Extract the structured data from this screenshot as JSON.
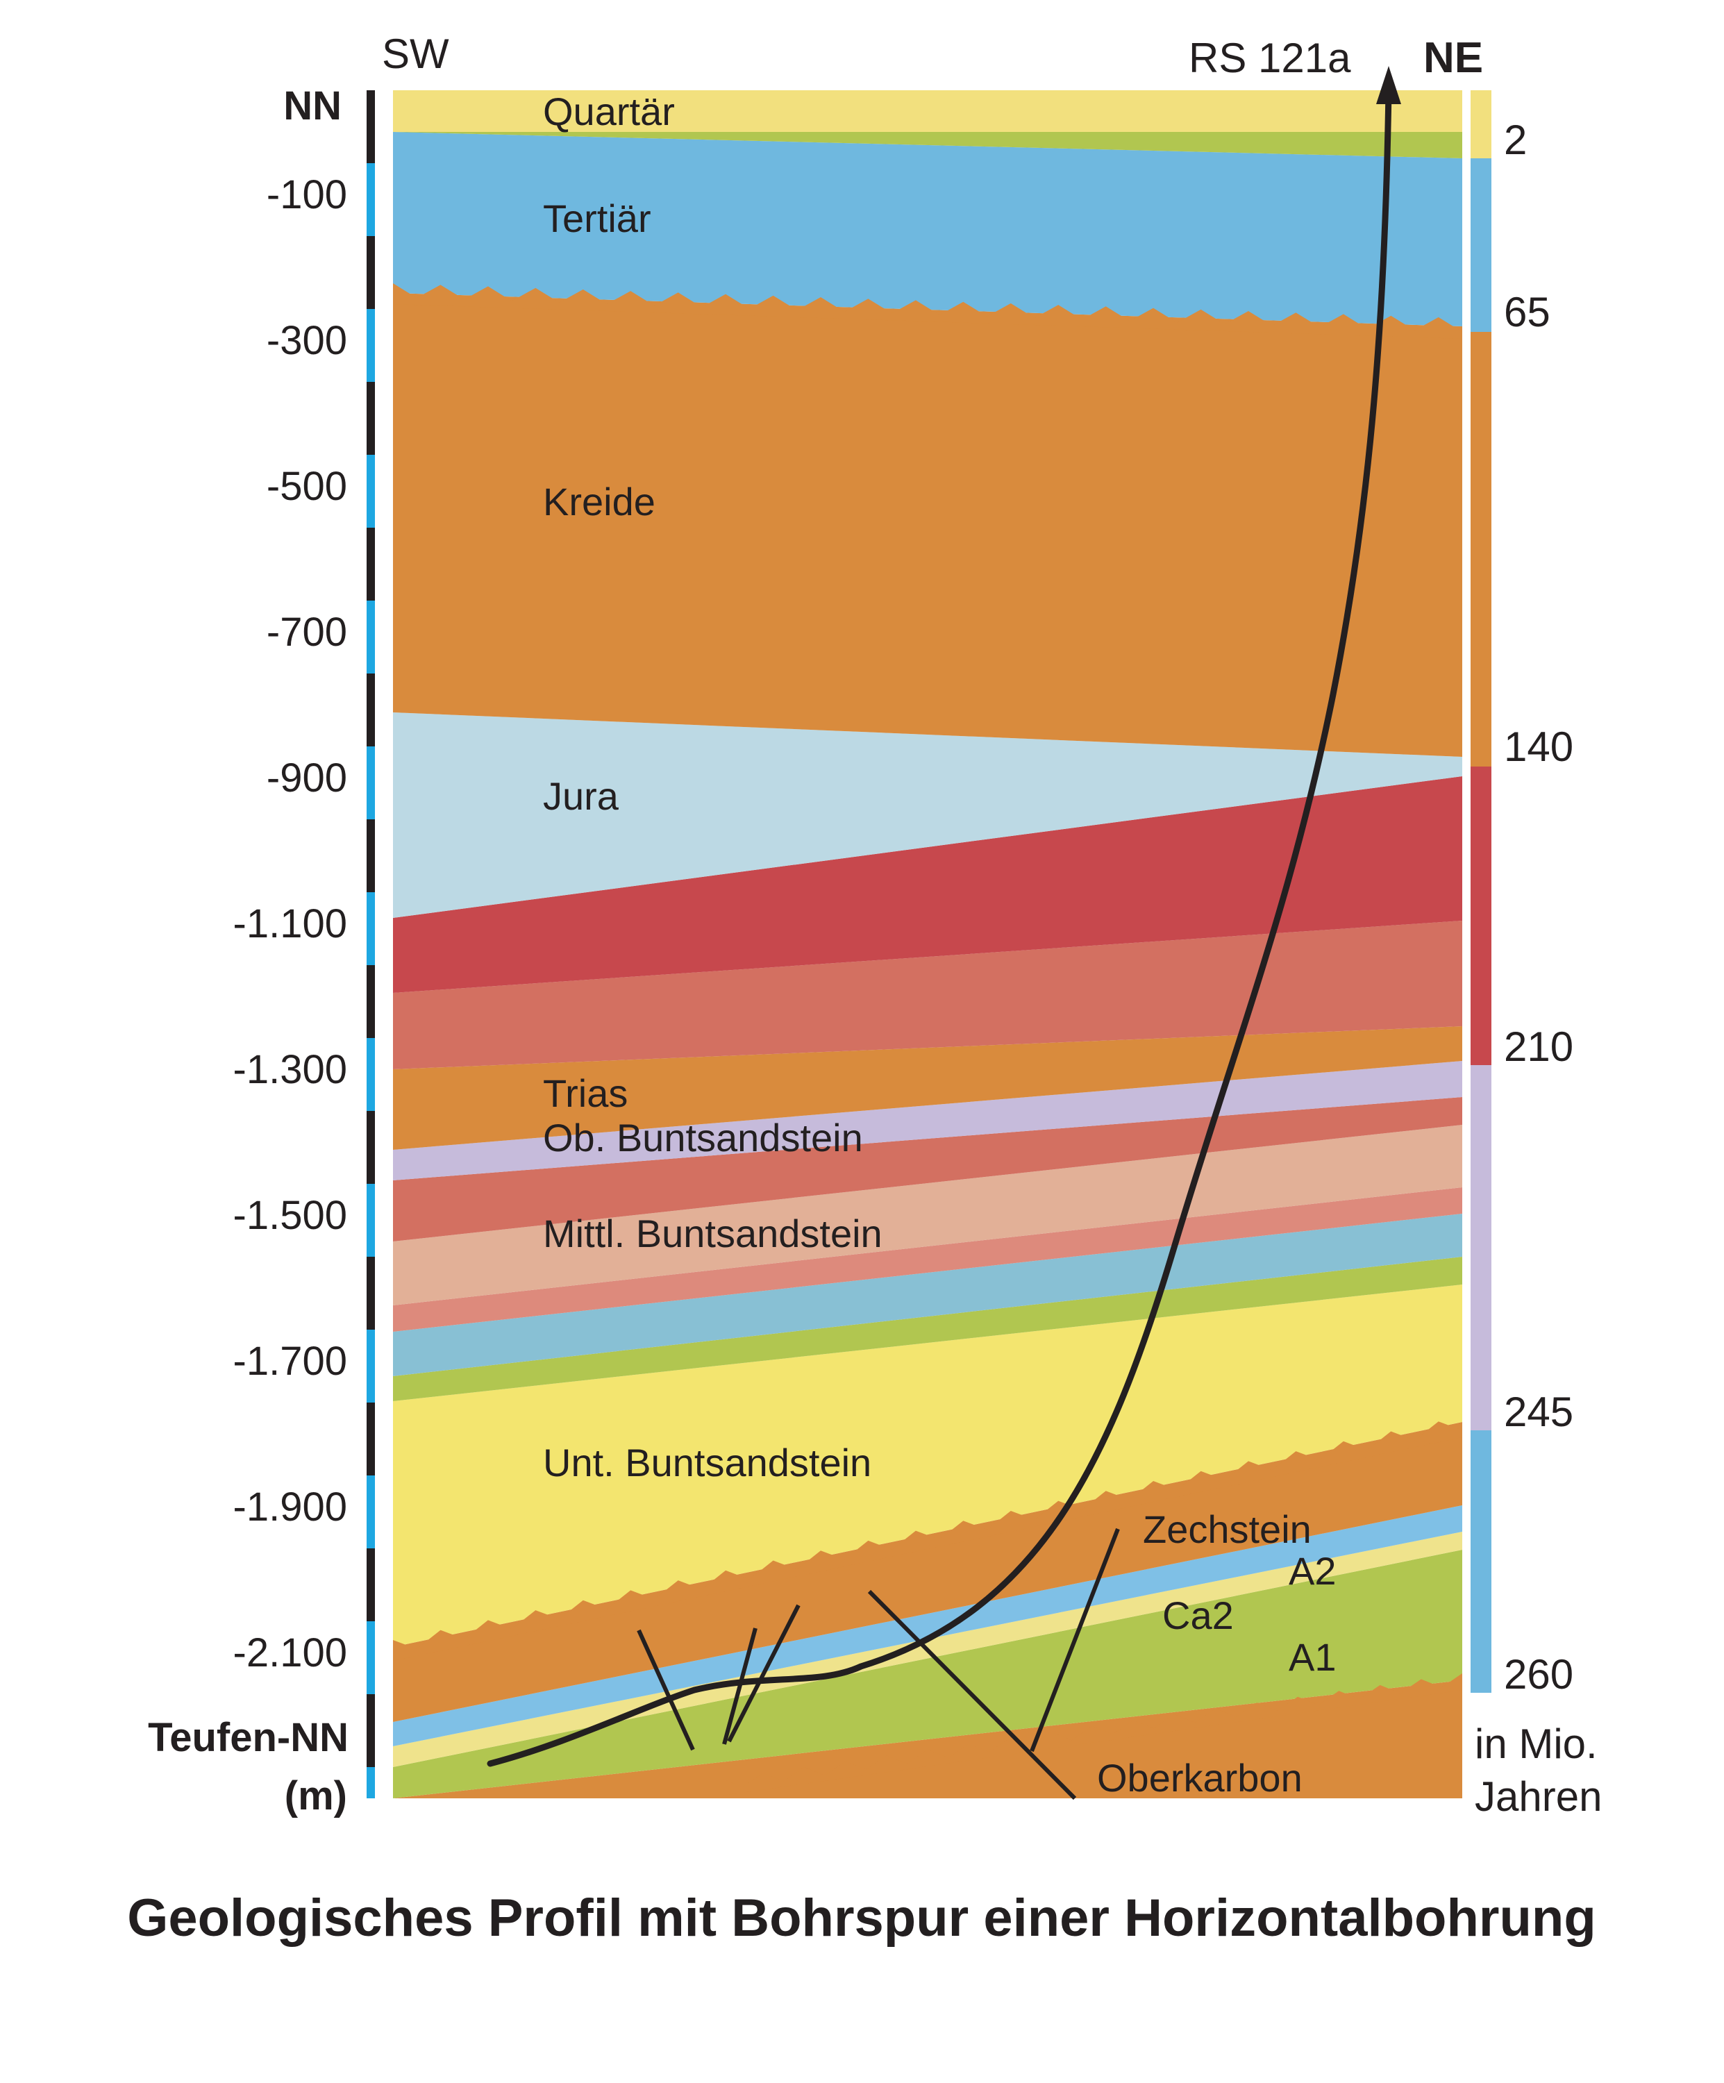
{
  "header": {
    "left_direction": "SW",
    "well_name": "RS 121a",
    "right_direction": "NE"
  },
  "depth_axis": {
    "ticks": [
      "NN",
      "-100",
      "-300",
      "-500",
      "-700",
      "-900",
      "-1.100",
      "-1.300",
      "-1.500",
      "-1.700",
      "-1.900",
      "-2.100"
    ],
    "title_line1": "Teufen-NN",
    "title_line2": "(m)",
    "colors": {
      "bar_dark": "#231f20",
      "bar_light": "#1ea7e1"
    }
  },
  "layers": {
    "quartaer": "Quartär",
    "tertiaer": "Tertiär",
    "kreide": "Kreide",
    "jura": "Jura",
    "trias": "Trias",
    "ob_buntsandstein": "Ob. Buntsandstein",
    "mittl_buntsandstein": "Mittl. Buntsandstein",
    "unt_buntsandstein": "Unt. Buntsandstein",
    "zechstein": "Zechstein",
    "a2": "A2",
    "ca2": "Ca2",
    "a1": "A1",
    "oberkarbon": "Oberkarbon"
  },
  "layer_colors": {
    "quartaer": "#f2e07e",
    "green": "#b1c650",
    "tertiaer": "#6fb8df",
    "kreide": "#d98b3d",
    "jura": "#bcd9e4",
    "red": "#c7484d",
    "salmon": "#d37061",
    "purple": "#c6bbdb",
    "peach": "#e2b097",
    "pink": "#dd8a7c",
    "teal": "#88c0d4",
    "yellow": "#f3e56f",
    "blue_a2": "#7fc0e6",
    "pale_yellow": "#efe38c"
  },
  "age_scale": {
    "values": [
      "2",
      "65",
      "140",
      "210",
      "245",
      "260"
    ],
    "unit_line1": "in Mio.",
    "unit_line2": "Jahren"
  },
  "caption": "Geologisches Profil mit Bohrspur einer Horizontalbohrung"
}
